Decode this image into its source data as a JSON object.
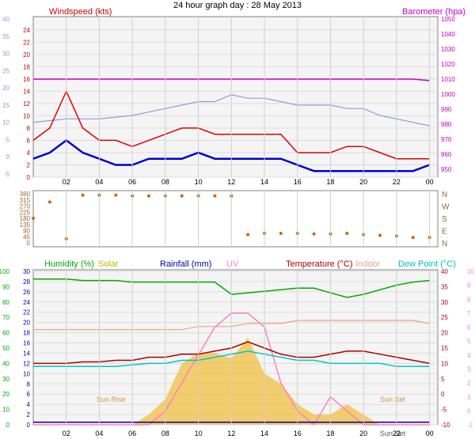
{
  "title": "24 hour graph day : 28 May 2013",
  "x_ticks": [
    "02",
    "04",
    "06",
    "08",
    "10",
    "12",
    "14",
    "16",
    "18",
    "20",
    "22",
    "00"
  ],
  "colors": {
    "wind": "#e00000",
    "gust_left": "#8c9bd9",
    "baro": "#c000c0",
    "avg": "#0000cc",
    "dir": "#cc6600",
    "hum": "#00aa00",
    "temp": "#aa0000",
    "indoor": "#f0a080",
    "dew": "#00c8c8",
    "uv": "#ff80c0",
    "solar": "#f0c040",
    "rain": "#0000aa"
  },
  "chart_data": [
    {
      "type": "line",
      "title": "",
      "left_label": "Windspeed (kts)",
      "right_label": "Barometer (hpa)",
      "y_left_ticks": [
        0,
        2,
        4,
        6,
        8,
        10,
        12,
        14,
        16,
        18,
        20,
        22,
        24
      ],
      "y_far_left_ticks": [
        -5,
        0,
        5,
        10,
        15,
        20,
        25,
        30,
        35,
        40
      ],
      "y_right_ticks": [
        950,
        960,
        970,
        980,
        990,
        1000,
        1010,
        1020,
        1030,
        1040,
        1050
      ],
      "ylim_left": [
        0,
        25
      ],
      "ylim_right": [
        950,
        1050
      ],
      "x_hours": [
        0,
        1,
        2,
        3,
        4,
        5,
        6,
        7,
        8,
        9,
        10,
        11,
        12,
        13,
        14,
        15,
        16,
        17,
        18,
        19,
        20,
        21,
        22,
        23,
        24
      ],
      "series": [
        {
          "name": "Windspeed (kts)",
          "axis": "left",
          "values": [
            6,
            8,
            14,
            8,
            6,
            6,
            5,
            6,
            7,
            8,
            8,
            7,
            7,
            7,
            7,
            7,
            4,
            4,
            4,
            5,
            5,
            4,
            3,
            3,
            3
          ]
        },
        {
          "axis": "left",
          "values": [
            3,
            4,
            6,
            4,
            3,
            2,
            2,
            3,
            3,
            3,
            4,
            3,
            3,
            3,
            3,
            3,
            2,
            1,
            1,
            1,
            1,
            1,
            1,
            1,
            2
          ]
        },
        {
          "name": "Barometer (hpa)",
          "axis": "right",
          "values": [
            1010,
            1010,
            1010,
            1010,
            1010,
            1010,
            1010,
            1010,
            1010,
            1010,
            1010,
            1010,
            1010,
            1010,
            1010,
            1010,
            1010,
            1010,
            1010,
            1010,
            1010,
            1010,
            1010,
            1010,
            1009
          ]
        },
        {
          "axis": "far_left",
          "values": [
            10,
            10.5,
            11,
            11,
            11,
            11.5,
            12,
            13,
            14,
            15,
            16,
            16,
            18,
            17,
            17,
            16,
            15,
            15,
            15,
            14,
            14,
            12,
            11,
            10,
            9
          ]
        }
      ]
    },
    {
      "type": "scatter",
      "title": "",
      "y_left_ticks": [
        0,
        45,
        90,
        135,
        180,
        225,
        270,
        315,
        360
      ],
      "y_right_labels": [
        "N",
        "E",
        "S",
        "W",
        "N"
      ],
      "ylim": [
        0,
        360
      ],
      "series": [
        {
          "values": [
            180,
            300,
            30,
            350,
            350,
            350,
            345,
            345,
            345,
            345,
            345,
            345,
            345,
            60,
            70,
            70,
            70,
            65,
            65,
            70,
            60,
            55,
            50,
            40,
            40
          ]
        }
      ]
    },
    {
      "type": "line",
      "title": "",
      "legend": [
        "Humidity (%)",
        "Solar",
        "Rainfall (mm)",
        "UV",
        "Temperature (°C)",
        "Indoor",
        "Dew Point (°C)"
      ],
      "y_hum_ticks": [
        0,
        10,
        20,
        30,
        40,
        50,
        60,
        70,
        80,
        90,
        100
      ],
      "y_rain_ticks": [
        0,
        2,
        4,
        6,
        8,
        10,
        12,
        14,
        16,
        18,
        20,
        22,
        24,
        26,
        28,
        30
      ],
      "y_temp_ticks": [
        -10,
        -5,
        0,
        5,
        10,
        15,
        20,
        25,
        30,
        35,
        40
      ],
      "y_uv_ticks": [
        -1,
        0,
        1,
        2,
        3,
        4,
        5,
        6,
        7,
        8,
        9,
        10
      ],
      "annotations": [
        "Sun Rise",
        "Sun Set",
        "Sun Set"
      ],
      "series": [
        {
          "name": "Humidity (%)",
          "values": [
            95,
            95,
            95,
            94,
            94,
            94,
            93,
            93,
            93,
            93,
            93,
            93,
            85,
            86,
            87,
            88,
            89,
            89,
            86,
            83,
            85,
            88,
            91,
            93,
            94
          ]
        },
        {
          "name": "Temperature (°C)",
          "values": [
            10,
            10,
            10,
            10.5,
            10.5,
            11,
            11,
            12,
            12,
            13,
            13,
            14,
            15,
            17,
            15,
            13,
            12,
            12,
            13,
            14,
            14,
            13,
            12,
            11,
            10
          ]
        },
        {
          "name": "Indoor",
          "values": [
            21,
            21,
            21,
            21,
            21,
            21,
            21,
            21,
            21,
            21,
            22,
            22,
            22,
            23,
            23,
            23,
            24,
            24,
            24,
            24,
            24,
            24,
            24,
            24,
            23
          ]
        },
        {
          "name": "Dew Point (°C)",
          "values": [
            9,
            9,
            9,
            9,
            9,
            9,
            9.5,
            10,
            10,
            11,
            11,
            12,
            13,
            14,
            13,
            12,
            11,
            11,
            10,
            10,
            10,
            10,
            9,
            9,
            9
          ]
        },
        {
          "name": "Solar",
          "values": [
            0,
            0,
            0,
            0,
            0,
            0,
            0,
            2,
            5,
            12,
            14,
            14,
            13,
            17,
            10,
            8,
            4,
            2,
            2,
            4,
            2,
            0,
            0,
            0,
            0
          ]
        },
        {
          "name": "UV",
          "values": [
            -1,
            -1,
            -1,
            -1,
            -1,
            -1,
            -1,
            -1,
            0,
            2,
            4,
            6,
            7,
            7,
            6,
            2,
            0,
            -1,
            1,
            0,
            -1,
            -1,
            -1,
            -1,
            -1
          ]
        },
        {
          "name": "Rainfall (mm)",
          "values": [
            0.5,
            0.5,
            0.5,
            0.5,
            0.5,
            0.5,
            0.5,
            0.5,
            0.5,
            0.5,
            0.5,
            0.5,
            0.5,
            0.5,
            0.5,
            0.5,
            0.5,
            0.5,
            0.5,
            0.5,
            0.5,
            0.5,
            0.5,
            0.5,
            0.5
          ]
        }
      ]
    }
  ]
}
